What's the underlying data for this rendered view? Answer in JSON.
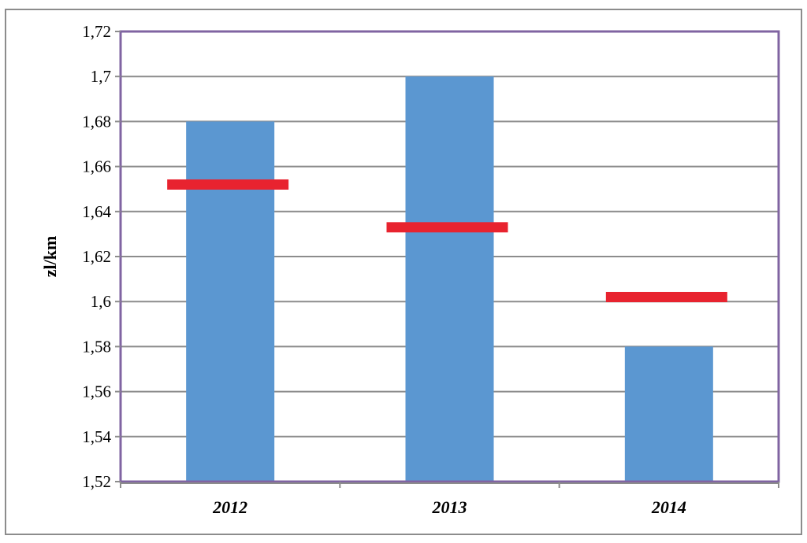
{
  "chart_data": {
    "type": "bar",
    "categories": [
      "2012",
      "2013",
      "2014"
    ],
    "series": [
      {
        "values": [
          1.68,
          1.7,
          1.58
        ],
        "color": "#5b97d1",
        "kind": "bar"
      },
      {
        "values": [
          1.652,
          1.633,
          1.602
        ],
        "color": "#e8232f",
        "kind": "marker"
      }
    ],
    "title": "",
    "xlabel": "",
    "ylabel": "zl/km",
    "ylim": [
      1.52,
      1.72
    ],
    "yticks": [
      1.52,
      1.54,
      1.56,
      1.58,
      1.6,
      1.62,
      1.64,
      1.66,
      1.68,
      1.7,
      1.72
    ],
    "ytick_labels": [
      "1,52",
      "1,54",
      "1,56",
      "1,58",
      "1,6",
      "1,62",
      "1,64",
      "1,66",
      "1,68",
      "1,7",
      "1,72"
    ],
    "grid": true,
    "legend": "none",
    "plot_border_color": "#8064a2",
    "gridline_color": "#8c8c8c"
  }
}
